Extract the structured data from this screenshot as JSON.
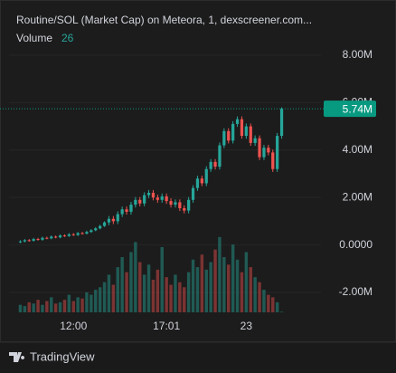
{
  "chart_data": {
    "type": "candlestick",
    "title": "Routine/SOL (Market Cap) on Meteora, 1, dexscreener.com...",
    "categories": [
      null,
      null,
      null,
      null,
      null,
      null,
      null,
      null,
      null,
      null,
      null,
      null,
      "12:00",
      null,
      null,
      null,
      null,
      null,
      null,
      null,
      null,
      null,
      null,
      null,
      null,
      null,
      null,
      null,
      null,
      null,
      null,
      null,
      null,
      "17:01",
      null,
      null,
      null,
      null,
      null,
      null,
      null,
      null,
      null,
      null,
      null,
      null,
      null,
      null,
      null,
      null,
      null,
      "23",
      null,
      null,
      null,
      null,
      null,
      null,
      null,
      null
    ],
    "open": [
      0.12,
      0.15,
      0.2,
      0.18,
      0.25,
      0.22,
      0.3,
      0.28,
      0.35,
      0.32,
      0.4,
      0.38,
      0.45,
      0.42,
      0.5,
      0.48,
      0.55,
      0.62,
      0.7,
      0.8,
      0.95,
      1.1,
      1.0,
      1.3,
      1.5,
      1.4,
      1.7,
      1.9,
      1.75,
      2.1,
      2.2,
      2.0,
      1.9,
      2.05,
      1.85,
      1.7,
      1.8,
      1.55,
      1.45,
      1.9,
      2.4,
      2.8,
      2.6,
      3.2,
      3.5,
      3.3,
      4.2,
      4.8,
      4.4,
      5.1,
      5.3,
      4.6,
      5.0,
      4.3,
      4.5,
      3.7,
      4.1,
      3.9,
      3.2,
      4.6
    ],
    "high": [
      0.2,
      0.25,
      0.25,
      0.3,
      0.3,
      0.35,
      0.35,
      0.4,
      0.4,
      0.45,
      0.45,
      0.5,
      0.5,
      0.55,
      0.55,
      0.6,
      0.67,
      0.75,
      0.85,
      1.0,
      1.22,
      1.22,
      1.42,
      1.62,
      1.62,
      1.82,
      2.02,
      2.02,
      2.22,
      2.32,
      2.32,
      2.12,
      2.17,
      2.17,
      1.97,
      1.92,
      1.92,
      1.67,
      2.02,
      2.52,
      2.92,
      2.92,
      3.32,
      3.62,
      3.62,
      4.32,
      4.92,
      4.92,
      5.22,
      5.42,
      5.42,
      5.12,
      5.12,
      4.62,
      4.62,
      4.22,
      4.22,
      4.02,
      4.72,
      5.8
    ],
    "low": [
      0.08,
      0.11,
      0.14,
      0.14,
      0.18,
      0.18,
      0.24,
      0.24,
      0.28,
      0.28,
      0.34,
      0.34,
      0.38,
      0.38,
      0.44,
      0.44,
      0.51,
      0.58,
      0.66,
      0.76,
      0.83,
      0.88,
      0.88,
      1.18,
      1.28,
      1.28,
      1.58,
      1.63,
      1.63,
      1.98,
      1.88,
      1.78,
      1.78,
      1.73,
      1.58,
      1.58,
      1.43,
      1.33,
      1.33,
      1.78,
      2.28,
      2.48,
      2.48,
      3.08,
      3.18,
      3.18,
      4.08,
      4.28,
      4.28,
      4.98,
      4.48,
      4.48,
      4.18,
      4.18,
      3.58,
      3.58,
      3.78,
      3.08,
      3.08,
      4.48
    ],
    "close": [
      0.15,
      0.2,
      0.18,
      0.25,
      0.22,
      0.3,
      0.28,
      0.35,
      0.32,
      0.4,
      0.38,
      0.45,
      0.42,
      0.5,
      0.48,
      0.55,
      0.62,
      0.7,
      0.8,
      0.95,
      1.1,
      1.0,
      1.3,
      1.5,
      1.4,
      1.7,
      1.9,
      1.75,
      2.1,
      2.2,
      2.0,
      1.9,
      2.05,
      1.85,
      1.7,
      1.8,
      1.55,
      1.45,
      1.9,
      2.4,
      2.8,
      2.6,
      3.2,
      3.5,
      3.3,
      4.2,
      4.8,
      4.4,
      5.1,
      5.3,
      4.6,
      5.0,
      4.3,
      4.5,
      3.7,
      4.1,
      3.9,
      3.2,
      4.6,
      5.74
    ],
    "last_value_label": "5.74M",
    "up_color": "#26a69a",
    "down_color": "#ef5350",
    "volume": {
      "name": "Volume",
      "ylim": [
        0,
        11000
      ],
      "values": [
        300,
        250,
        400,
        350,
        500,
        300,
        450,
        600,
        350,
        400,
        500,
        700,
        450,
        600,
        550,
        800,
        700,
        900,
        1000,
        1200,
        1500,
        1100,
        1800,
        2200,
        1600,
        2400,
        2800,
        2000,
        1500,
        1900,
        1300,
        1700,
        2600,
        1400,
        1100,
        1500,
        1200,
        1000,
        1600,
        2100,
        1800,
        2300,
        1700,
        2000,
        2500,
        3000,
        2200,
        1900,
        2700,
        2100,
        1600,
        2400,
        1800,
        1400,
        1200,
        900,
        700,
        600,
        400,
        26
      ]
    },
    "ylim": [
      -2.84,
      8.8
    ],
    "yticks": [
      {
        "value": -2,
        "label": "-2.00M"
      },
      {
        "value": 0,
        "label": "0.0000"
      },
      {
        "value": 2,
        "label": "2.00M"
      },
      {
        "value": 4,
        "label": "4.00M"
      },
      {
        "value": 6,
        "label": "6.00M"
      },
      {
        "value": 8,
        "label": "8.00M"
      }
    ],
    "grid": true
  },
  "footer": {
    "brand": "TradingView"
  }
}
